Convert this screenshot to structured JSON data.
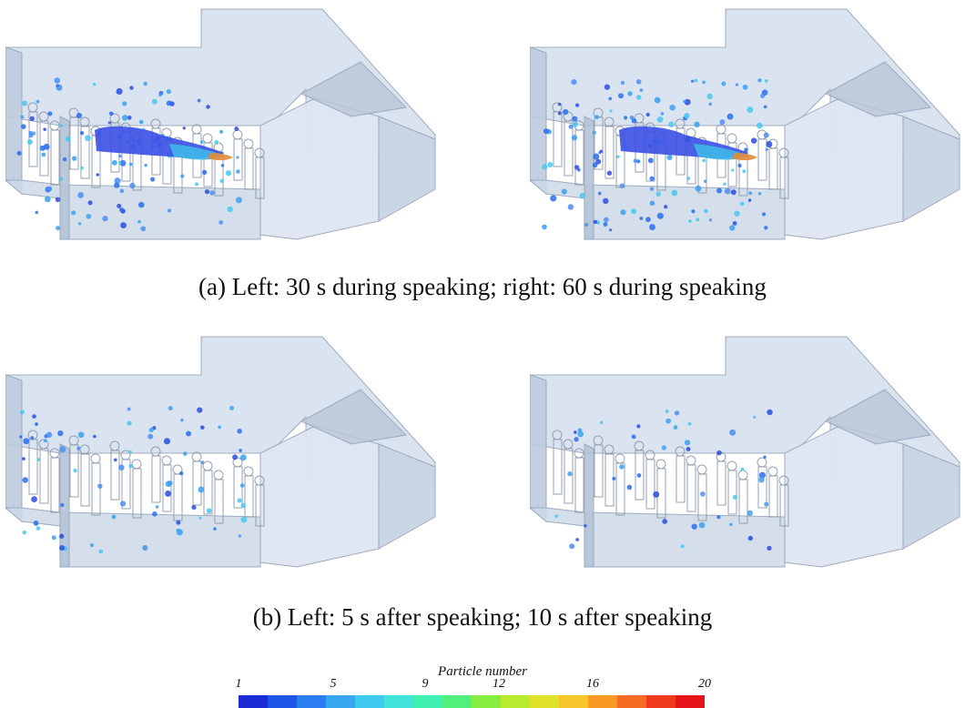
{
  "panels": [
    {
      "name": "top-left",
      "time": "30 s during speaking",
      "plume": true,
      "droplets": 110
    },
    {
      "name": "top-right",
      "time": "60 s during speaking",
      "plume": true,
      "droplets": 130
    },
    {
      "name": "bottom-left",
      "time": "5 s after speaking",
      "plume": false,
      "droplets": 75
    },
    {
      "name": "bottom-right",
      "time": "10 s after speaking",
      "plume": false,
      "droplets": 45
    }
  ],
  "captions": {
    "a": "(a) Left: 30 s during speaking; right: 60 s during speaking",
    "b": "(b) Left: 5 s after speaking; 10 s after speaking"
  },
  "colorbar": {
    "title": "Particle number",
    "ticks": [
      "1",
      "5",
      "9",
      "12",
      "16",
      "20"
    ],
    "colors": [
      "#1b2bd6",
      "#1f55e6",
      "#2a7df0",
      "#38a7f2",
      "#3fc9ee",
      "#43e3d9",
      "#3ff0b0",
      "#52f07a",
      "#86ee3f",
      "#b8ea2e",
      "#e0e32a",
      "#f7c62a",
      "#f99a26",
      "#f56c22",
      "#ef3a1e",
      "#e8141a"
    ]
  }
}
